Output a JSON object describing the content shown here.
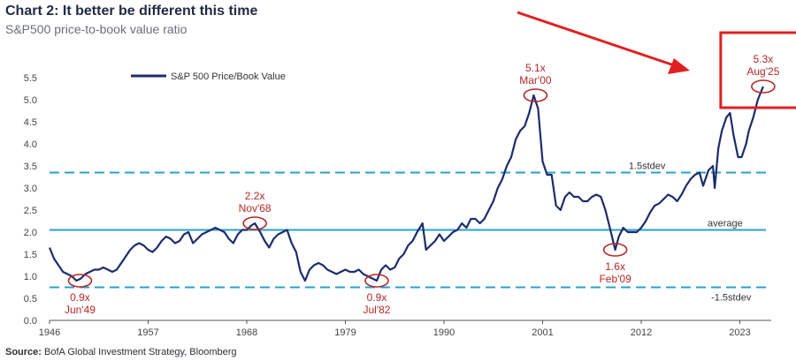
{
  "header": {
    "title": "Chart 2: It better be different this time",
    "subtitle": "S&P500 price-to-book value ratio"
  },
  "footer": {
    "source_label": "Source:",
    "source_text": "BofA Global Investment Strategy, Bloomberg"
  },
  "colors": {
    "series": "#1c2c6b",
    "reference_lines": "#2aa0cc",
    "annotation": "#b42828",
    "arrow": "#e02020",
    "axis_text": "#444444"
  },
  "chart_data": {
    "type": "line",
    "title": "Chart 2: It better be different this time",
    "subtitle": "S&P500 price-to-book value ratio",
    "xlabel": "",
    "ylabel": "",
    "xlim": [
      1946,
      2026.5
    ],
    "ylim": [
      0.0,
      5.5
    ],
    "x_ticks": [
      1946,
      1957,
      1968,
      1979,
      1990,
      2001,
      2012,
      2023
    ],
    "y_ticks": [
      0.0,
      0.5,
      1.0,
      1.5,
      2.0,
      2.5,
      3.0,
      3.5,
      4.0,
      4.5,
      5.0,
      5.5
    ],
    "grid": false,
    "legend": {
      "position": "top-left",
      "entries": [
        "S&P 500 Price/Book Value"
      ]
    },
    "series": [
      {
        "name": "S&P 500 Price/Book Value",
        "x": [
          1946.0,
          1946.5,
          1947.0,
          1947.5,
          1948.0,
          1948.5,
          1949.0,
          1949.5,
          1950.0,
          1950.5,
          1951.0,
          1951.5,
          1952.0,
          1952.5,
          1953.0,
          1953.5,
          1954.0,
          1954.5,
          1955.0,
          1955.5,
          1956.0,
          1956.5,
          1957.0,
          1957.5,
          1958.0,
          1958.5,
          1959.0,
          1959.5,
          1960.0,
          1960.5,
          1961.0,
          1961.5,
          1962.0,
          1962.5,
          1963.0,
          1963.5,
          1964.0,
          1964.5,
          1965.0,
          1965.5,
          1966.0,
          1966.5,
          1967.0,
          1967.5,
          1968.0,
          1968.5,
          1968.9,
          1969.5,
          1970.0,
          1970.5,
          1971.0,
          1971.5,
          1972.0,
          1972.5,
          1973.0,
          1973.5,
          1974.0,
          1974.5,
          1975.0,
          1975.5,
          1976.0,
          1976.5,
          1977.0,
          1977.5,
          1978.0,
          1978.5,
          1979.0,
          1979.5,
          1980.0,
          1980.5,
          1981.0,
          1981.5,
          1982.5,
          1983.0,
          1983.5,
          1984.0,
          1984.5,
          1985.0,
          1985.5,
          1986.0,
          1986.5,
          1987.0,
          1987.6,
          1988.0,
          1988.5,
          1989.0,
          1989.5,
          1990.0,
          1990.5,
          1991.0,
          1991.5,
          1992.0,
          1992.5,
          1993.0,
          1993.5,
          1994.0,
          1994.5,
          1995.0,
          1995.5,
          1996.0,
          1996.5,
          1997.0,
          1997.5,
          1998.0,
          1998.5,
          1999.0,
          1999.5,
          2000.0,
          2000.5,
          2001.0,
          2001.5,
          2002.0,
          2002.5,
          2003.0,
          2003.5,
          2004.0,
          2004.5,
          2005.0,
          2005.5,
          2006.0,
          2006.5,
          2007.0,
          2007.5,
          2008.0,
          2008.5,
          2009.1,
          2009.5,
          2010.0,
          2010.5,
          2011.0,
          2011.5,
          2012.0,
          2012.5,
          2013.0,
          2013.5,
          2014.0,
          2014.5,
          2015.0,
          2015.5,
          2016.0,
          2016.5,
          2017.0,
          2017.5,
          2018.0,
          2018.5,
          2018.9,
          2019.5,
          2020.0,
          2020.2,
          2020.6,
          2021.0,
          2021.5,
          2021.9,
          2022.3,
          2022.8,
          2023.2,
          2023.7,
          2024.0,
          2024.5,
          2025.0,
          2025.6
        ],
        "y": [
          1.65,
          1.4,
          1.25,
          1.1,
          1.05,
          1.0,
          0.9,
          0.95,
          1.05,
          1.1,
          1.15,
          1.15,
          1.2,
          1.15,
          1.1,
          1.15,
          1.3,
          1.45,
          1.6,
          1.7,
          1.75,
          1.7,
          1.6,
          1.55,
          1.65,
          1.8,
          1.9,
          1.85,
          1.75,
          1.8,
          1.95,
          2.0,
          1.75,
          1.85,
          1.95,
          2.0,
          2.05,
          2.1,
          2.05,
          2.0,
          1.85,
          1.75,
          1.95,
          2.05,
          2.05,
          2.15,
          2.2,
          2.0,
          1.8,
          1.65,
          1.85,
          1.95,
          2.0,
          2.05,
          1.75,
          1.55,
          1.1,
          0.9,
          1.15,
          1.25,
          1.3,
          1.25,
          1.15,
          1.1,
          1.05,
          1.1,
          1.15,
          1.1,
          1.1,
          1.15,
          1.05,
          1.0,
          0.9,
          1.15,
          1.25,
          1.15,
          1.2,
          1.4,
          1.5,
          1.7,
          1.8,
          2.0,
          2.2,
          1.6,
          1.7,
          1.8,
          1.95,
          1.8,
          1.9,
          2.0,
          2.05,
          2.2,
          2.1,
          2.3,
          2.3,
          2.2,
          2.3,
          2.5,
          2.7,
          3.0,
          3.2,
          3.5,
          3.7,
          4.1,
          4.3,
          4.4,
          4.7,
          5.1,
          4.8,
          3.6,
          3.3,
          3.3,
          2.6,
          2.5,
          2.8,
          2.9,
          2.8,
          2.8,
          2.7,
          2.7,
          2.8,
          2.85,
          2.8,
          2.5,
          2.1,
          1.6,
          1.9,
          2.1,
          2.0,
          2.0,
          2.0,
          2.1,
          2.25,
          2.45,
          2.6,
          2.65,
          2.75,
          2.85,
          2.8,
          2.7,
          2.85,
          3.05,
          3.2,
          3.3,
          3.35,
          3.05,
          3.4,
          3.5,
          3.0,
          3.9,
          4.3,
          4.6,
          4.7,
          4.2,
          3.7,
          3.7,
          4.0,
          4.3,
          4.6,
          5.0,
          5.3
        ]
      }
    ],
    "reference_lines": [
      {
        "label": "1.5stdev",
        "value": 3.35,
        "style": "dashed"
      },
      {
        "label": "average",
        "value": 2.05,
        "style": "solid"
      },
      {
        "label": "-1.5stdev",
        "value": 0.75,
        "style": "dashed"
      }
    ],
    "annotations": [
      {
        "label": "0.9x",
        "date": "Jun'49",
        "x": 1949.4,
        "y": 0.9,
        "text_position": "below"
      },
      {
        "label": "2.2x",
        "date": "Nov'68",
        "x": 1968.9,
        "y": 2.2,
        "text_position": "above"
      },
      {
        "label": "0.9x",
        "date": "Jul'82",
        "x": 1982.5,
        "y": 0.9,
        "text_position": "below"
      },
      {
        "label": "5.1x",
        "date": "Mar'00",
        "x": 2000.2,
        "y": 5.1,
        "text_position": "above"
      },
      {
        "label": "1.6x",
        "date": "Feb'09",
        "x": 2009.1,
        "y": 1.6,
        "text_position": "below"
      },
      {
        "label": "5.3x",
        "date": "Aug'25",
        "x": 2025.6,
        "y": 5.3,
        "text_position": "above",
        "highlighted": true
      }
    ]
  }
}
